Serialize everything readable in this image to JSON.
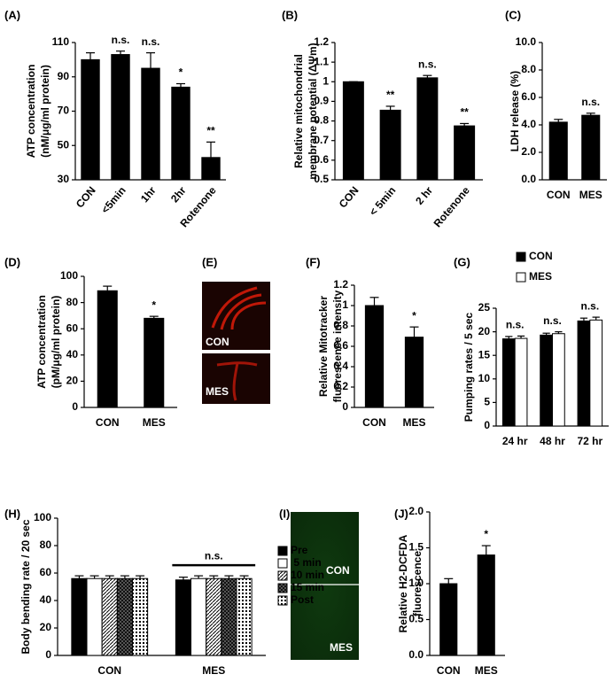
{
  "chart_data": [
    {
      "type": "bar",
      "label": "(A)",
      "y_label": [
        "ATP concentration",
        "(nM/μg/ml protein)"
      ],
      "categories": [
        "CON",
        "<5min",
        "1hr",
        "2hr",
        "Rotenone"
      ],
      "values": [
        100,
        103,
        95,
        84,
        43
      ],
      "errors": [
        4,
        2,
        9,
        2,
        9
      ],
      "color": "#000000",
      "annotations": [
        null,
        "n.s.",
        "n.s.",
        "*",
        "**"
      ],
      "ylim": [
        30,
        110
      ],
      "yticks": [
        30,
        50,
        70,
        90,
        110
      ]
    },
    {
      "type": "bar",
      "label": "(B)",
      "y_label": [
        "Relative mitochondrial",
        "membrane potential (ΔΨm)"
      ],
      "categories": [
        "CON",
        "< 5min",
        "2 hr",
        "Rotenone"
      ],
      "values": [
        1.0,
        0.855,
        1.02,
        0.775
      ],
      "errors": [
        0,
        0.02,
        0.012,
        0.012
      ],
      "color": "#000000",
      "annotations": [
        null,
        "**",
        "n.s.",
        "**"
      ],
      "ylim": [
        0.5,
        1.2
      ],
      "yticks": [
        0.5,
        0.6,
        0.7,
        0.8,
        0.9,
        1,
        1.1,
        1.2
      ]
    },
    {
      "type": "bar",
      "label": "(C)",
      "y_label": [
        "LDH release (%)"
      ],
      "categories": [
        "CON",
        "MES"
      ],
      "values": [
        4.2,
        4.7
      ],
      "errors": [
        0.2,
        0.15
      ],
      "color": "#000000",
      "annotations": [
        null,
        "n.s."
      ],
      "ylim": [
        0,
        10
      ],
      "yticks": [
        {
          "value": 0,
          "label": "0.0"
        },
        {
          "value": 2,
          "label": "2.0"
        },
        {
          "value": 4,
          "label": "4.0"
        },
        {
          "value": 6,
          "label": "6.0"
        },
        {
          "value": 8,
          "label": "8.0"
        },
        {
          "value": 10,
          "label": "10.0"
        }
      ]
    },
    {
      "type": "bar",
      "label": "(D)",
      "y_label": [
        "ATP concentration",
        "(pM/μg/ml protein)"
      ],
      "categories": [
        "CON",
        "MES"
      ],
      "values": [
        89,
        68
      ],
      "errors": [
        3.5,
        1.5
      ],
      "color": "#000000",
      "annotations": [
        null,
        "*"
      ],
      "ylim": [
        0,
        100
      ],
      "yticks": [
        0,
        20,
        40,
        60,
        80,
        100
      ]
    },
    {
      "type": "bar",
      "label": "(F)",
      "y_label": [
        "Relative Mitotracker",
        "fluorescence intensity"
      ],
      "categories": [
        "CON",
        "MES"
      ],
      "values": [
        1.0,
        0.69
      ],
      "errors": [
        0.08,
        0.1
      ],
      "color": "#000000",
      "annotations": [
        null,
        "*"
      ],
      "ylim": [
        0,
        1.2
      ],
      "yticks": [
        0,
        0.2,
        0.4,
        0.6,
        0.8,
        1,
        1.2
      ]
    },
    {
      "type": "bar",
      "label": "(G)",
      "y_label": [
        "Pumping rates / 5 sec"
      ],
      "categories": [
        "24 hr",
        "48 hr",
        "72 hr"
      ],
      "series": [
        {
          "name": "CON",
          "color": "#000000",
          "values": [
            18.5,
            19.3,
            22.3
          ],
          "errors": [
            0.5,
            0.4,
            0.6
          ]
        },
        {
          "name": "MES",
          "color": "#ffffff",
          "values": [
            18.6,
            19.6,
            22.5
          ],
          "errors": [
            0.5,
            0.4,
            0.6
          ]
        }
      ],
      "annotations": [
        "n.s.",
        "n.s.",
        "n.s."
      ],
      "legend": "top",
      "ylim": [
        0,
        25
      ],
      "yticks": [
        0,
        5,
        10,
        15,
        20,
        25
      ]
    },
    {
      "type": "bar",
      "label": "(H)",
      "y_label": [
        "Body bending rate / 20 sec"
      ],
      "categories": [
        "CON",
        "MES"
      ],
      "series": [
        {
          "name": "Pre",
          "color": "#000000",
          "values": [
            56,
            55
          ],
          "errors": [
            2,
            2
          ]
        },
        {
          "name": " 5 min",
          "color": "#ffffff",
          "values": [
            56,
            56
          ],
          "errors": [
            2,
            2
          ]
        },
        {
          "name": "10 min",
          "color": "#ffffff",
          "pattern": "diagonal",
          "values": [
            56,
            56
          ],
          "errors": [
            2,
            2
          ]
        },
        {
          "name": "15 min",
          "color": "#ffffff",
          "pattern": "cross",
          "values": [
            56,
            56
          ],
          "errors": [
            2,
            2
          ]
        },
        {
          "name": "Post",
          "color": "#ffffff",
          "pattern": "dots",
          "values": [
            56,
            56
          ],
          "errors": [
            2,
            2
          ]
        }
      ],
      "annotations": [
        null,
        "n.s."
      ],
      "legend": "right",
      "ylim": [
        0,
        100
      ],
      "yticks": [
        0,
        20,
        40,
        60,
        80,
        100
      ]
    },
    {
      "type": "bar",
      "label": "(J)",
      "y_label": [
        "Relative H2-DCFDA",
        "fluorescence"
      ],
      "categories": [
        "CON",
        "MES"
      ],
      "values": [
        1.0,
        1.4
      ],
      "errors": [
        0.07,
        0.13
      ],
      "color": "#000000",
      "annotations": [
        null,
        "*"
      ],
      "ylim": [
        0,
        2
      ],
      "yticks": [
        {
          "value": 0,
          "label": "0.0"
        },
        {
          "value": 0.5,
          "label": "0.5"
        },
        {
          "value": 1,
          "label": "1.0"
        },
        {
          "value": 1.5,
          "label": "1.5"
        },
        {
          "value": 2,
          "label": "2.0"
        }
      ]
    }
  ],
  "images": [
    {
      "label": "(E)",
      "captions": [
        "CON",
        "MES"
      ]
    },
    {
      "label": "(I)",
      "captions": [
        "CON",
        "MES"
      ]
    }
  ]
}
